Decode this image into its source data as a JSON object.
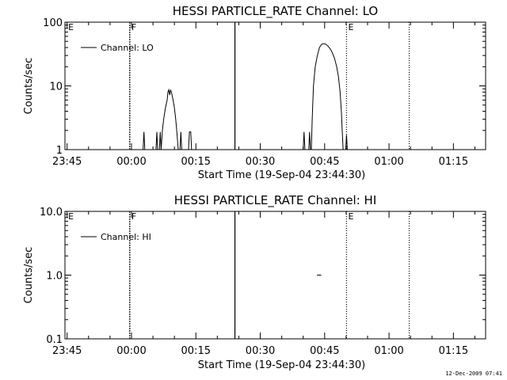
{
  "footer": {
    "timestamp": "12-Dec-2009 07:41"
  },
  "chart_data": [
    {
      "type": "line",
      "title": "HESSI PARTICLE_RATE Channel: LO",
      "xlabel": "Start Time (19-Sep-04 23:44:30)",
      "ylabel": "Counts/sec",
      "x_unit": "minutes since 23:44:30",
      "xlim": [
        0,
        98
      ],
      "ylim": [
        1,
        100
      ],
      "yscale": "log",
      "x_ticks": [
        {
          "value": 0.5,
          "label": "23:45"
        },
        {
          "value": 15.5,
          "label": "00:00"
        },
        {
          "value": 30.5,
          "label": "00:15"
        },
        {
          "value": 45.5,
          "label": "00:30"
        },
        {
          "value": 60.5,
          "label": "00:45"
        },
        {
          "value": 75.5,
          "label": "01:00"
        },
        {
          "value": 90.5,
          "label": "01:15"
        }
      ],
      "y_ticks": [
        {
          "value": 1,
          "label": "1"
        },
        {
          "value": 10,
          "label": "10"
        },
        {
          "value": 100,
          "label": "100"
        }
      ],
      "legend": {
        "label": "Channel: LO",
        "position": "top-left"
      },
      "markers": [
        {
          "x": 0.4,
          "label": "E",
          "style": "none"
        },
        {
          "x": 15.1,
          "label": "F",
          "style": "dashed"
        },
        {
          "x": 39.6,
          "label": "",
          "style": "solid"
        },
        {
          "x": 65.6,
          "label": "E",
          "style": "dotted"
        },
        {
          "x": 80.2,
          "label": "",
          "style": "dotted"
        }
      ],
      "segments": [
        [
          [
            18.2,
            1
          ],
          [
            18.4,
            1.9
          ],
          [
            18.6,
            1
          ]
        ],
        [
          [
            21.2,
            1
          ],
          [
            21.4,
            1.9
          ],
          [
            21.6,
            1
          ]
        ],
        [
          [
            22.0,
            1
          ],
          [
            22.2,
            1.9
          ],
          [
            22.4,
            1
          ]
        ],
        [
          [
            22.4,
            1
          ],
          [
            22.7,
            2.0
          ],
          [
            23.0,
            3.0
          ],
          [
            23.4,
            4.5
          ],
          [
            23.8,
            6.0
          ],
          [
            24.0,
            8.0
          ],
          [
            24.2,
            8.7
          ],
          [
            24.4,
            7.2
          ],
          [
            24.6,
            8.7
          ],
          [
            24.9,
            7.5
          ],
          [
            25.2,
            6.0
          ],
          [
            25.5,
            4.5
          ],
          [
            25.8,
            3.0
          ],
          [
            26.1,
            1.8
          ],
          [
            26.4,
            1
          ]
        ],
        [
          [
            26.8,
            1
          ],
          [
            27.0,
            1.9
          ],
          [
            27.2,
            1
          ]
        ],
        [
          [
            28.8,
            1
          ],
          [
            29.0,
            1.9
          ],
          [
            29.3,
            1.9
          ],
          [
            29.5,
            1
          ]
        ],
        [
          [
            55.5,
            1
          ],
          [
            55.7,
            1.9
          ],
          [
            55.9,
            1
          ]
        ],
        [
          [
            56.8,
            1
          ],
          [
            57.0,
            1.9
          ],
          [
            57.2,
            1
          ]
        ],
        [
          [
            57.4,
            1
          ],
          [
            57.6,
            3.0
          ],
          [
            57.9,
            10
          ],
          [
            58.3,
            20
          ],
          [
            58.8,
            30
          ],
          [
            59.3,
            40
          ],
          [
            59.8,
            45
          ],
          [
            60.3,
            46
          ],
          [
            60.8,
            45
          ],
          [
            61.3,
            42
          ],
          [
            61.8,
            38
          ],
          [
            62.3,
            33
          ],
          [
            62.8,
            27
          ],
          [
            63.3,
            20
          ],
          [
            63.7,
            14
          ],
          [
            64.1,
            8
          ],
          [
            64.4,
            4
          ],
          [
            64.6,
            2
          ],
          [
            64.8,
            1
          ]
        ],
        [
          [
            65.4,
            1
          ],
          [
            65.6,
            1.7
          ],
          [
            65.8,
            1
          ]
        ]
      ]
    },
    {
      "type": "line",
      "title": "HESSI PARTICLE_RATE Channel: HI",
      "xlabel": "Start Time (19-Sep-04 23:44:30)",
      "ylabel": "Counts/sec",
      "x_unit": "minutes since 23:44:30",
      "xlim": [
        0,
        98
      ],
      "ylim": [
        0.1,
        10
      ],
      "yscale": "log",
      "x_ticks": [
        {
          "value": 0.5,
          "label": "23:45"
        },
        {
          "value": 15.5,
          "label": "00:00"
        },
        {
          "value": 30.5,
          "label": "00:15"
        },
        {
          "value": 45.5,
          "label": "00:30"
        },
        {
          "value": 60.5,
          "label": "00:45"
        },
        {
          "value": 75.5,
          "label": "01:00"
        },
        {
          "value": 90.5,
          "label": "01:15"
        }
      ],
      "y_ticks": [
        {
          "value": 0.1,
          "label": "0.1"
        },
        {
          "value": 1,
          "label": "1.0"
        },
        {
          "value": 10,
          "label": "10.0"
        }
      ],
      "legend": {
        "label": "Channel: HI",
        "position": "top-left"
      },
      "markers": [
        {
          "x": 0.4,
          "label": "E",
          "style": "none"
        },
        {
          "x": 15.1,
          "label": "F",
          "style": "dashed"
        },
        {
          "x": 39.6,
          "label": "",
          "style": "solid"
        },
        {
          "x": 65.6,
          "label": "E",
          "style": "dotted"
        },
        {
          "x": 80.2,
          "label": "",
          "style": "dotted"
        }
      ],
      "segments": [
        [
          [
            58.7,
            1.0
          ],
          [
            59.7,
            1.0
          ]
        ]
      ]
    }
  ]
}
